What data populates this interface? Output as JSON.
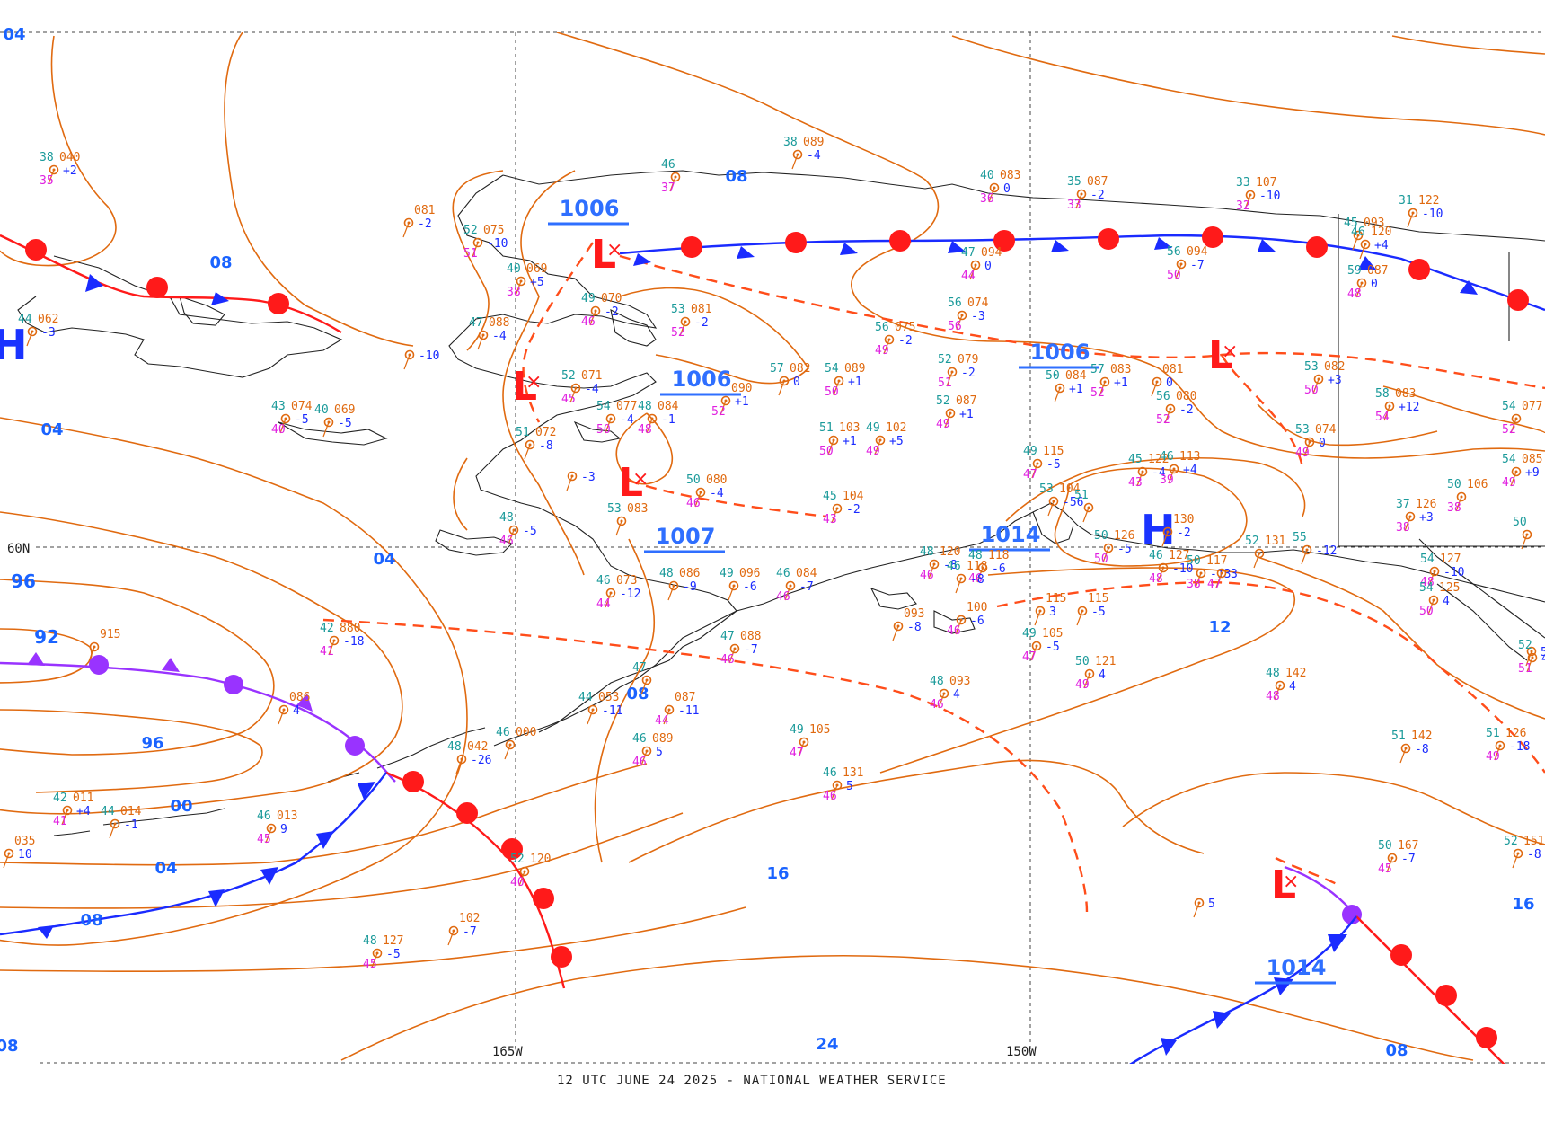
{
  "footer": "12 UTC JUNE 24 2025 - NATIONAL WEATHER SERVICE",
  "axis": {
    "lat_60": "60N",
    "lon_165": "165W",
    "lon_150": "150W"
  },
  "colors": {
    "isobar": "#e06a10",
    "warm_front": "#ff1a1a",
    "cold_front": "#1a2bff",
    "occluded_front": "#9933ff",
    "trough": "#ff4d1a",
    "coast": "#222222",
    "label": "#1a63ff",
    "temp": "#1a9a9a",
    "dewpoint": "#e020e0",
    "pressure": "#e06a10",
    "tendency": "#1a2bff"
  },
  "pressure_centers": [
    {
      "type": "L",
      "value": "1006"
    },
    {
      "type": "L",
      "value": ""
    },
    {
      "type": "L",
      "value": "1007"
    },
    {
      "type": "L",
      "value": "1006"
    },
    {
      "type": "L",
      "value": "1014"
    },
    {
      "type": "H",
      "value": "1014"
    },
    {
      "type": "H",
      "value": ""
    }
  ],
  "center_values": [
    "1006",
    "1006",
    "1006",
    "1007",
    "1014",
    "1014"
  ],
  "isobar_labels": [
    "04",
    "08",
    "08",
    "08",
    "04",
    "04",
    "96",
    "92",
    "96",
    "00",
    "04",
    "08",
    "12",
    "16",
    "16",
    "24",
    "08",
    "08"
  ],
  "stations": [
    {
      "t": "38",
      "p": "040",
      "d": "35",
      "tend": "+2"
    },
    {
      "t": "",
      "p": "081",
      "d": "",
      "tend": "-2"
    },
    {
      "t": "52",
      "p": "075",
      "d": "51",
      "tend": "-10"
    },
    {
      "t": "40",
      "p": "069",
      "d": "38",
      "tend": "+5"
    },
    {
      "t": "44",
      "p": "062",
      "d": "",
      "tend": "-3"
    },
    {
      "t": "47",
      "p": "088",
      "d": "",
      "tend": "-4"
    },
    {
      "t": "",
      "p": "",
      "d": "",
      "tend": "-10"
    },
    {
      "t": "49",
      "p": "070",
      "d": "46",
      "tend": "-2"
    },
    {
      "t": "53",
      "p": "081",
      "d": "52",
      "tend": "-2"
    },
    {
      "t": "43",
      "p": "074",
      "d": "40",
      "tend": "-5"
    },
    {
      "t": "40",
      "p": "069",
      "d": "",
      "tend": "-5"
    },
    {
      "t": "52",
      "p": "071",
      "d": "45",
      "tend": "-4"
    },
    {
      "t": "54",
      "p": "077",
      "d": "50",
      "tend": "-4"
    },
    {
      "t": "48",
      "p": "084",
      "d": "48",
      "tend": "-1"
    },
    {
      "t": "",
      "p": "090",
      "d": "52",
      "tend": "+1"
    },
    {
      "t": "57",
      "p": "082",
      "d": "",
      "tend": "0"
    },
    {
      "t": "54",
      "p": "089",
      "d": "50",
      "tend": "+1"
    },
    {
      "t": "51",
      "p": "072",
      "d": "",
      "tend": "-8"
    },
    {
      "t": "",
      "p": "",
      "d": "",
      "tend": "-3"
    },
    {
      "t": "50",
      "p": "080",
      "d": "46",
      "tend": "-4"
    },
    {
      "t": "51",
      "p": "103",
      "d": "50",
      "tend": "+1"
    },
    {
      "t": "49",
      "p": "102",
      "d": "49",
      "tend": "+5"
    },
    {
      "t": "45",
      "p": "104",
      "d": "43",
      "tend": "-2"
    },
    {
      "t": "53",
      "p": "083",
      "d": "",
      "tend": ""
    },
    {
      "t": "48",
      "p": "",
      "d": "46",
      "tend": "-5"
    },
    {
      "t": "48",
      "p": "086",
      "d": "",
      "tend": "-9"
    },
    {
      "t": "49",
      "p": "096",
      "d": "",
      "tend": "-6"
    },
    {
      "t": "46",
      "p": "084",
      "d": "46",
      "tend": "-7"
    },
    {
      "t": "46",
      "p": "073",
      "d": "44",
      "tend": "-12"
    },
    {
      "t": "42",
      "p": "880",
      "d": "41",
      "tend": "-18"
    },
    {
      "t": "",
      "p": "915",
      "d": "",
      "tend": ""
    },
    {
      "t": "47",
      "p": "088",
      "d": "46",
      "tend": "-7"
    },
    {
      "t": "47",
      "p": "",
      "d": "",
      "tend": ""
    },
    {
      "t": "44",
      "p": "053",
      "d": "",
      "tend": "-11"
    },
    {
      "t": "",
      "p": "087",
      "d": "44",
      "tend": "-11"
    },
    {
      "t": "46",
      "p": "089",
      "d": "46",
      "tend": "5"
    },
    {
      "t": "49",
      "p": "105",
      "d": "47",
      "tend": ""
    },
    {
      "t": "48",
      "p": "042",
      "d": "",
      "tend": "-26"
    },
    {
      "t": "46",
      "p": "000",
      "d": "",
      "tend": ""
    },
    {
      "t": "",
      "p": "086",
      "d": "",
      "tend": "4"
    },
    {
      "t": "42",
      "p": "011",
      "d": "41",
      "tend": "+4"
    },
    {
      "t": "44",
      "p": "014",
      "d": "",
      "tend": "-1"
    },
    {
      "t": "46",
      "p": "013",
      "d": "45",
      "tend": "9"
    },
    {
      "t": "",
      "p": "035",
      "d": "",
      "tend": "10"
    },
    {
      "t": "46",
      "p": "131",
      "d": "46",
      "tend": "5"
    },
    {
      "t": "52",
      "p": "120",
      "d": "40",
      "tend": ""
    },
    {
      "t": "",
      "p": "102",
      "d": "",
      "tend": "-7"
    },
    {
      "t": "48",
      "p": "127",
      "d": "45",
      "tend": "-5"
    },
    {
      "t": "38",
      "p": "089",
      "d": "",
      "tend": "-4"
    },
    {
      "t": "46",
      "p": "",
      "d": "37",
      "tend": ""
    },
    {
      "t": "40",
      "p": "083",
      "d": "36",
      "tend": "0"
    },
    {
      "t": "35",
      "p": "087",
      "d": "33",
      "tend": "-2"
    },
    {
      "t": "33",
      "p": "107",
      "d": "32",
      "tend": "-10"
    },
    {
      "t": "31",
      "p": "122",
      "d": "",
      "tend": "-10"
    },
    {
      "t": "45",
      "p": "093",
      "d": "",
      "tend": ""
    },
    {
      "t": "46",
      "p": "120",
      "d": "",
      "tend": "+4"
    },
    {
      "t": "47",
      "p": "094",
      "d": "44",
      "tend": "0"
    },
    {
      "t": "56",
      "p": "094",
      "d": "50",
      "tend": "-7"
    },
    {
      "t": "59",
      "p": "087",
      "d": "48",
      "tend": "0"
    },
    {
      "t": "56",
      "p": "074",
      "d": "56",
      "tend": "-3"
    },
    {
      "t": "56",
      "p": "075",
      "d": "49",
      "tend": "-2"
    },
    {
      "t": "52",
      "p": "079",
      "d": "51",
      "tend": "-2"
    },
    {
      "t": "52",
      "p": "087",
      "d": "49",
      "tend": "+1"
    },
    {
      "t": "50",
      "p": "084",
      "d": "",
      "tend": "+1"
    },
    {
      "t": "57",
      "p": "083",
      "d": "52",
      "tend": "+1"
    },
    {
      "t": "",
      "p": "081",
      "d": "",
      "tend": "0"
    },
    {
      "t": "56",
      "p": "080",
      "d": "52",
      "tend": "-2"
    },
    {
      "t": "53",
      "p": "082",
      "d": "50",
      "tend": "+3"
    },
    {
      "t": "58",
      "p": "083",
      "d": "54",
      "tend": "+12"
    },
    {
      "t": "54",
      "p": "077",
      "d": "52",
      "tend": ""
    },
    {
      "t": "53",
      "p": "074",
      "d": "49",
      "tend": "0"
    },
    {
      "t": "49",
      "p": "115",
      "d": "47",
      "tend": "-5"
    },
    {
      "t": "45",
      "p": "122",
      "d": "43",
      "tend": "-4"
    },
    {
      "t": "46",
      "p": "113",
      "d": "39",
      "tend": "+4"
    },
    {
      "t": "53",
      "p": "104",
      "d": "",
      "tend": "-56"
    },
    {
      "t": "51",
      "p": "",
      "d": "",
      "tend": ""
    },
    {
      "t": "",
      "p": "130",
      "d": "",
      "tend": "-2"
    },
    {
      "t": "54",
      "p": "085",
      "d": "49",
      "tend": "+9"
    },
    {
      "t": "50",
      "p": "106",
      "d": "38",
      "tend": ""
    },
    {
      "t": "37",
      "p": "126",
      "d": "38",
      "tend": "+3"
    },
    {
      "t": "50",
      "p": "",
      "d": "",
      "tend": ""
    },
    {
      "t": "",
      "p": "115",
      "d": "",
      "tend": "-5"
    },
    {
      "t": "50",
      "p": "126",
      "d": "50",
      "tend": "-5"
    },
    {
      "t": "46",
      "p": "127",
      "d": "48",
      "tend": "-10"
    },
    {
      "t": "50",
      "p": "117",
      "d": "38",
      "tend": "-13"
    },
    {
      "t": "",
      "p": "",
      "d": "47",
      "tend": "3"
    },
    {
      "t": "52",
      "p": "131",
      "d": "",
      "tend": ""
    },
    {
      "t": "55",
      "p": "",
      "d": "",
      "tend": "-12"
    },
    {
      "t": "54",
      "p": "127",
      "d": "48",
      "tend": "-10"
    },
    {
      "t": "54",
      "p": "125",
      "d": "50",
      "tend": "4"
    },
    {
      "t": "48",
      "p": "120",
      "d": "46",
      "tend": "-8"
    },
    {
      "t": "48",
      "p": "118",
      "d": "46",
      "tend": "-6"
    },
    {
      "t": "46",
      "p": "118",
      "d": "",
      "tend": "-8"
    },
    {
      "t": "",
      "p": "093",
      "d": "",
      "tend": "-8"
    },
    {
      "t": "",
      "p": "100",
      "d": "46",
      "tend": "-6"
    },
    {
      "t": "",
      "p": "115",
      "d": "",
      "tend": "3"
    },
    {
      "t": "49",
      "p": "105",
      "d": "47",
      "tend": "-5"
    },
    {
      "t": "50",
      "p": "121",
      "d": "49",
      "tend": "4"
    },
    {
      "t": "48",
      "p": "093",
      "d": "46",
      "tend": "4"
    },
    {
      "t": "48",
      "p": "142",
      "d": "48",
      "tend": "4"
    },
    {
      "t": "51",
      "p": "142",
      "d": "",
      "tend": "-8"
    },
    {
      "t": "51",
      "p": "126",
      "d": "49",
      "tend": "-18"
    },
    {
      "t": "",
      "p": "",
      "d": "",
      "tend": "5"
    },
    {
      "t": "50",
      "p": "167",
      "d": "45",
      "tend": "-7"
    },
    {
      "t": "52",
      "p": "151",
      "d": "",
      "tend": "-8"
    },
    {
      "t": "",
      "p": "",
      "d": "",
      "tend": "5"
    },
    {
      "t": "52",
      "p": "",
      "d": "51",
      "tend": "4"
    }
  ]
}
